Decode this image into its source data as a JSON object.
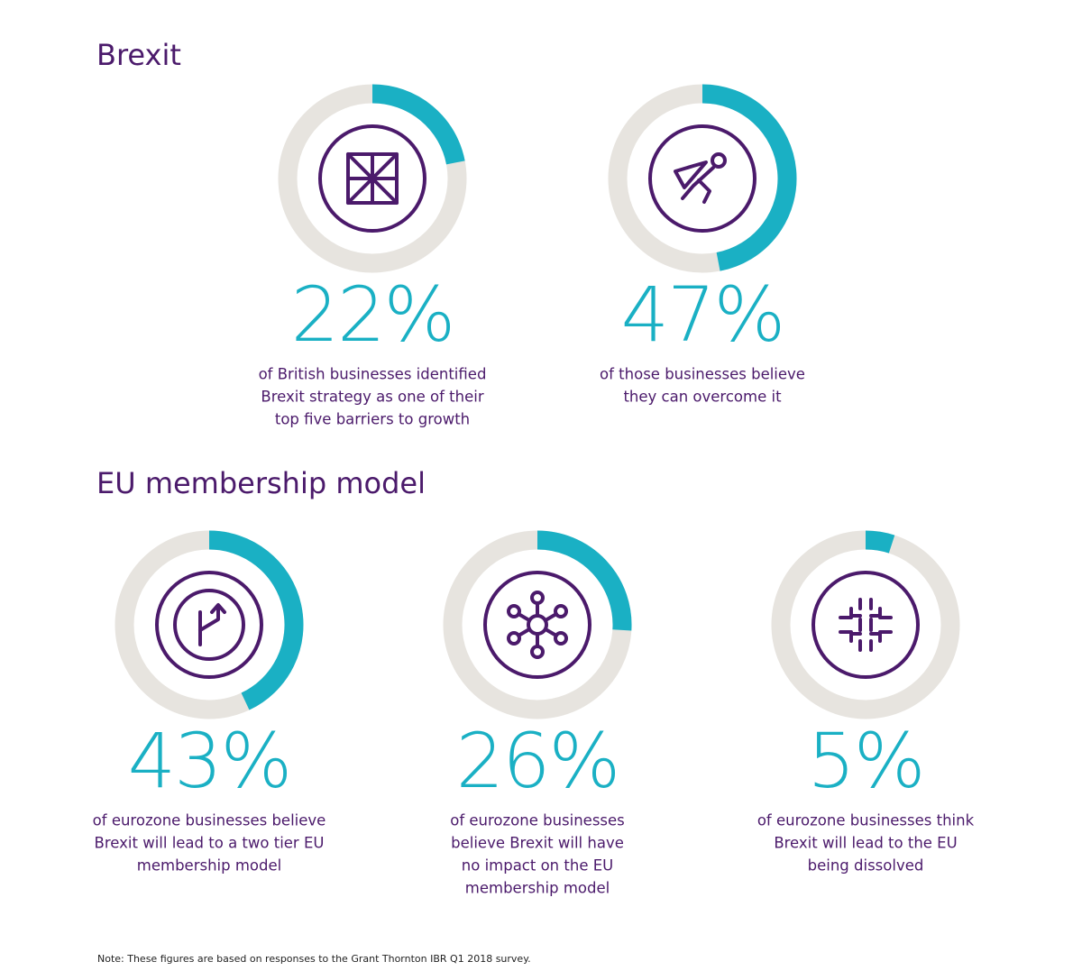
{
  "sections": [
    {
      "title": "Brexit"
    },
    {
      "title": "EU membership model"
    }
  ],
  "note": "Note:  These figures are based on responses to the Grant Thornton IBR Q1 2018 survey.",
  "chart_data": [
    {
      "type": "donut",
      "values": [
        22
      ],
      "value_labels": [
        "22%"
      ],
      "ylim": [
        0,
        100
      ],
      "color": "#1ab0c4",
      "track_color": "#e7e4df",
      "caption": [
        "of British businesses identified",
        "Brexit strategy as one of their",
        "top five barriers to growth"
      ]
    },
    {
      "type": "donut",
      "values": [
        47
      ],
      "value_labels": [
        "47%"
      ],
      "ylim": [
        0,
        100
      ],
      "color": "#1ab0c4",
      "track_color": "#e7e4df",
      "caption": [
        "of those businesses believe",
        "they can overcome it"
      ]
    },
    {
      "type": "donut",
      "values": [
        43
      ],
      "value_labels": [
        "43%"
      ],
      "ylim": [
        0,
        100
      ],
      "color": "#1ab0c4",
      "track_color": "#e7e4df",
      "caption": [
        "of eurozone businesses believe",
        "Brexit will lead to a two tier EU",
        "membership model"
      ]
    },
    {
      "type": "donut",
      "values": [
        26
      ],
      "value_labels": [
        "26%"
      ],
      "ylim": [
        0,
        100
      ],
      "color": "#1ab0c4",
      "track_color": "#e7e4df",
      "caption": [
        "of eurozone businesses",
        "believe Brexit will have",
        "no impact on the EU",
        "membership model"
      ]
    },
    {
      "type": "donut",
      "values": [
        5
      ],
      "value_labels": [
        "5%"
      ],
      "ylim": [
        0,
        100
      ],
      "color": "#1ab0c4",
      "track_color": "#e7e4df",
      "caption": [
        "of eurozone businesses think",
        "Brexit will lead to the EU",
        "being dissolved"
      ]
    }
  ]
}
